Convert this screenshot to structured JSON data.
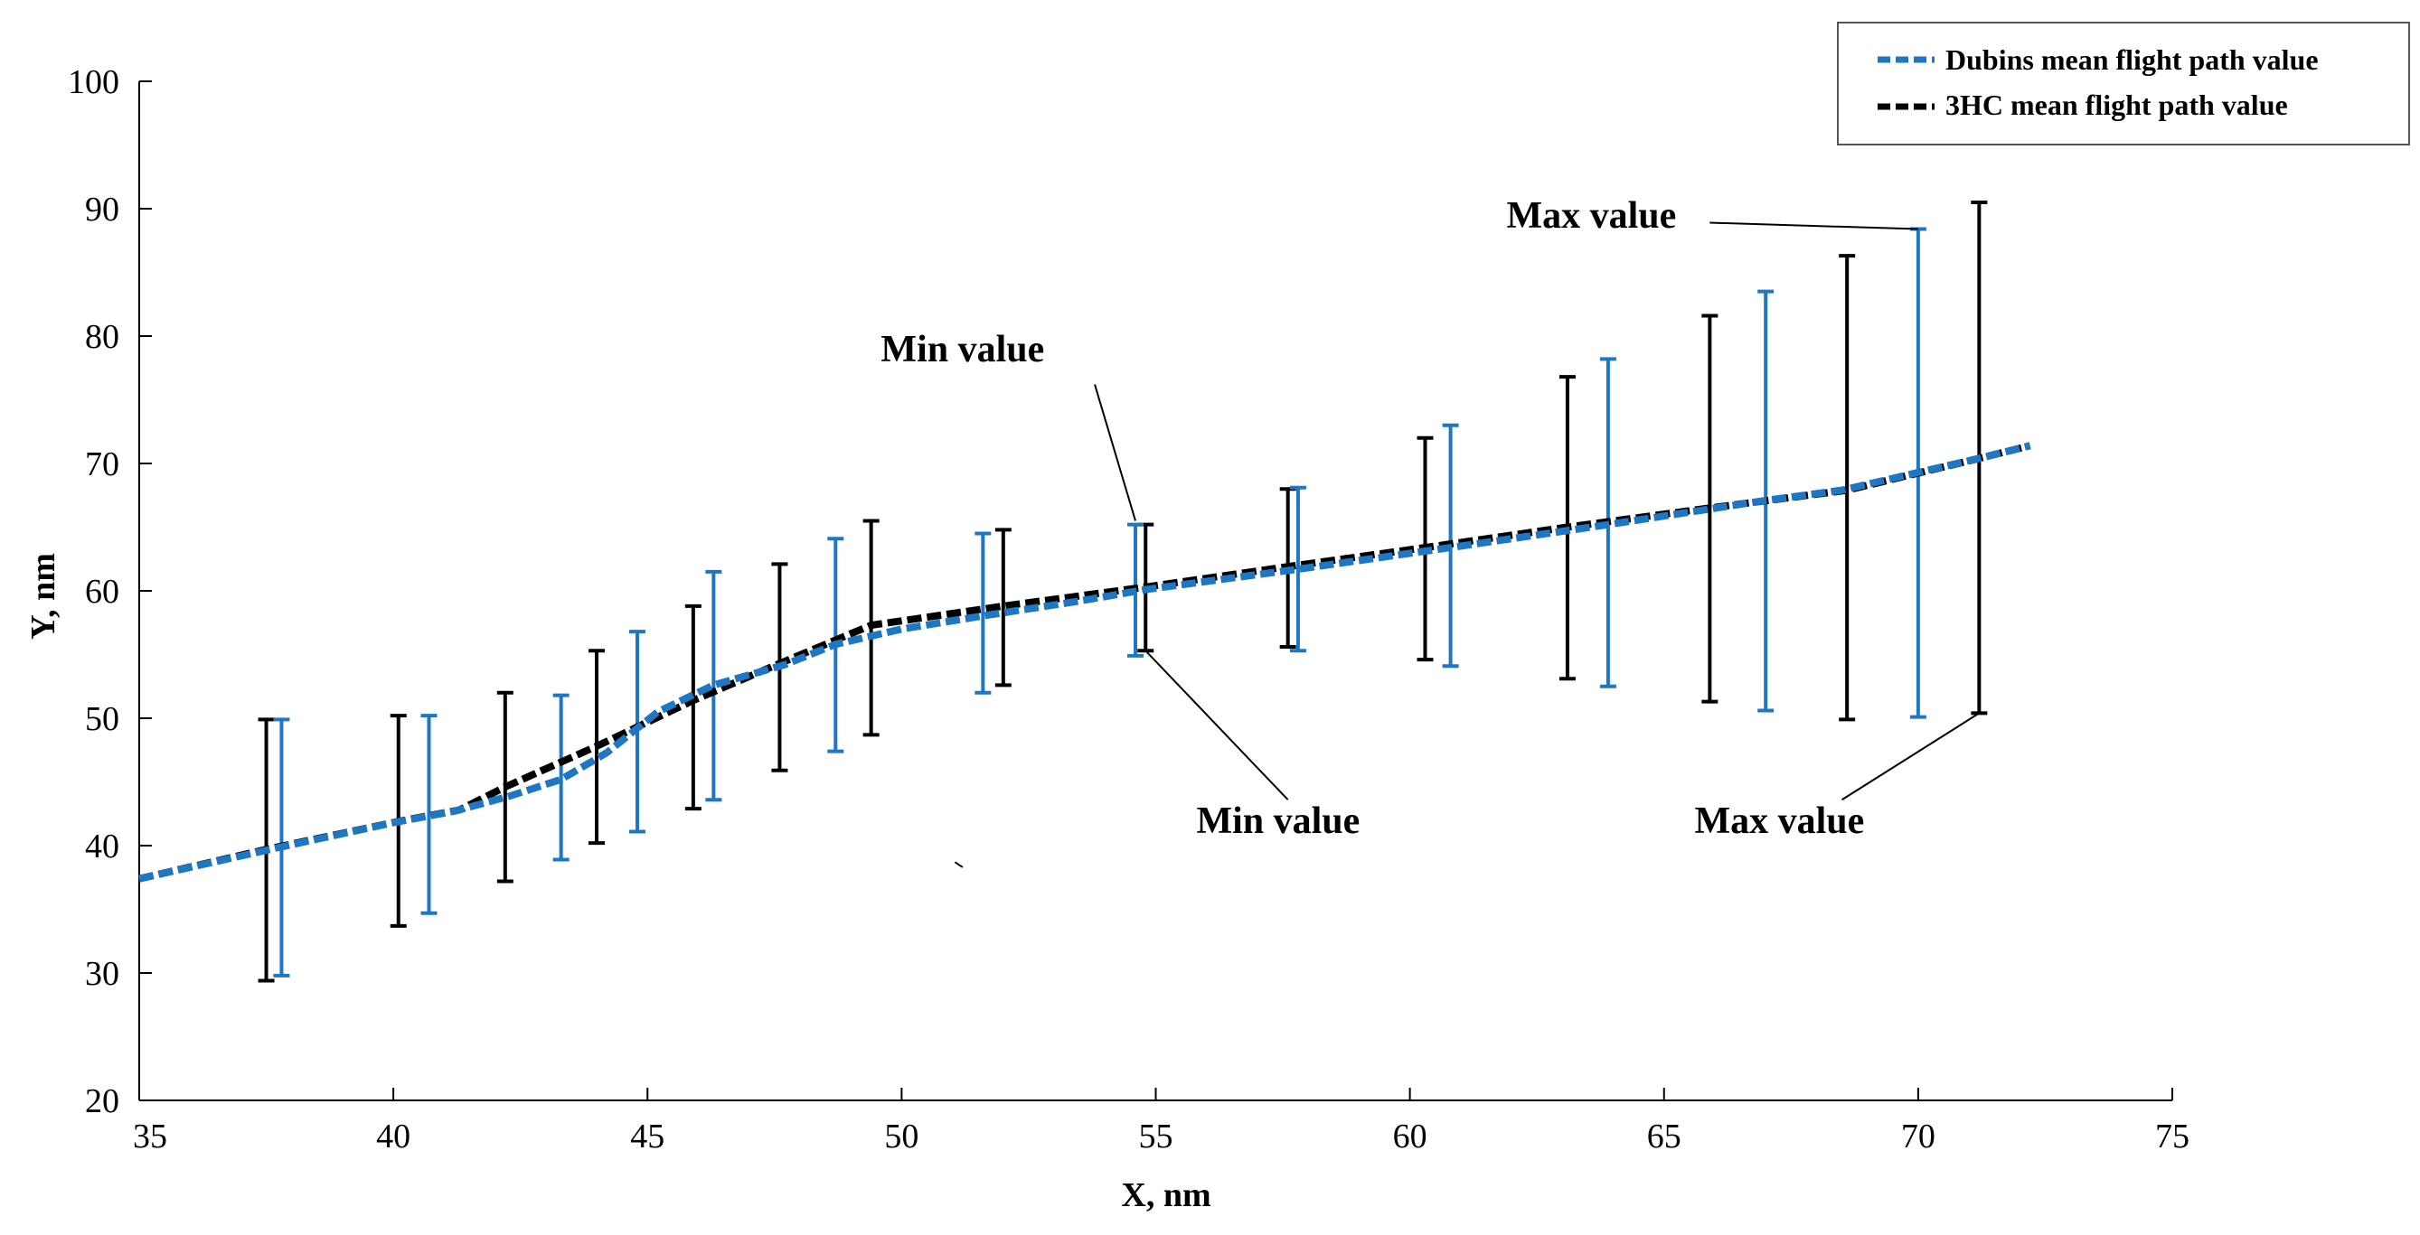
{
  "chart_data": {
    "type": "line",
    "title": "",
    "xlabel": "X, nm",
    "ylabel": "Y, nm",
    "xlim": [
      35,
      75
    ],
    "ylim": [
      20,
      100
    ],
    "xticks": [
      35,
      40,
      45,
      50,
      55,
      60,
      65,
      70,
      75
    ],
    "yticks": [
      20,
      30,
      40,
      50,
      60,
      70,
      80,
      90,
      100
    ],
    "legend_position": "top-right",
    "colors": {
      "dubins": "#1f77c4",
      "hc3": "#000000"
    },
    "series": [
      {
        "name": "Dubins mean flight path value",
        "style": "dashed",
        "color": "#1f77c4",
        "x": [
          35,
          37.8,
          40,
          41.2,
          42.3,
          43.3,
          44.2,
          45.2,
          46.3,
          47.7,
          48.7,
          50,
          51.7,
          53.5,
          54.8,
          57.8,
          60.8,
          63.9,
          67,
          68.5,
          70,
          71.2,
          72.2
        ],
        "y": [
          37.4,
          39.9,
          41.8,
          42.7,
          43.9,
          45.2,
          47.3,
          50.5,
          52.6,
          54.2,
          55.8,
          57.0,
          58.1,
          59.2,
          60.1,
          61.7,
          63.4,
          65.2,
          67.1,
          67.9,
          69.3,
          70.4,
          71.4
        ]
      },
      {
        "name": "3HC mean flight path value",
        "style": "dashed",
        "color": "#000000",
        "x": [
          35,
          37.5,
          40.1,
          41.3,
          42.2,
          44,
          45.9,
          47.6,
          49.4,
          52,
          54.8,
          57.6,
          60.3,
          63.1,
          65.9,
          68.6,
          71.2,
          72.2
        ],
        "y": [
          37.4,
          39.7,
          41.9,
          42.8,
          44.6,
          47.8,
          51.4,
          54.3,
          57.3,
          58.8,
          60.3,
          61.9,
          63.4,
          65.0,
          66.5,
          67.9,
          70.4,
          71.4
        ]
      }
    ],
    "error_bars": [
      {
        "series": "3HC mean flight path value",
        "points": [
          {
            "x": 37.5,
            "min": 29.4,
            "max": 49.9
          },
          {
            "x": 40.1,
            "min": 33.7,
            "max": 50.2
          },
          {
            "x": 42.2,
            "min": 37.2,
            "max": 52.0
          },
          {
            "x": 44.0,
            "min": 40.2,
            "max": 55.3
          },
          {
            "x": 45.9,
            "min": 42.9,
            "max": 58.8
          },
          {
            "x": 47.6,
            "min": 45.9,
            "max": 62.1
          },
          {
            "x": 49.4,
            "min": 48.7,
            "max": 65.5
          },
          {
            "x": 52.0,
            "min": 52.6,
            "max": 64.8
          },
          {
            "x": 54.8,
            "min": 55.3,
            "max": 65.2
          },
          {
            "x": 57.6,
            "min": 55.6,
            "max": 68.0
          },
          {
            "x": 60.3,
            "min": 54.6,
            "max": 72.0
          },
          {
            "x": 63.1,
            "min": 53.1,
            "max": 76.8
          },
          {
            "x": 65.9,
            "min": 51.3,
            "max": 81.6
          },
          {
            "x": 68.6,
            "min": 49.9,
            "max": 86.3
          },
          {
            "x": 71.2,
            "min": 50.4,
            "max": 90.5
          }
        ]
      },
      {
        "series": "Dubins mean flight path value",
        "points": [
          {
            "x": 37.8,
            "min": 29.8,
            "max": 49.9
          },
          {
            "x": 40.7,
            "min": 34.7,
            "max": 50.2
          },
          {
            "x": 43.3,
            "min": 38.9,
            "max": 51.8
          },
          {
            "x": 44.8,
            "min": 41.1,
            "max": 56.8
          },
          {
            "x": 46.3,
            "min": 43.6,
            "max": 61.5
          },
          {
            "x": 48.7,
            "min": 47.4,
            "max": 64.1
          },
          {
            "x": 51.6,
            "min": 52.0,
            "max": 64.5
          },
          {
            "x": 54.6,
            "min": 54.9,
            "max": 65.2
          },
          {
            "x": 57.8,
            "min": 55.3,
            "max": 68.1
          },
          {
            "x": 60.8,
            "min": 54.1,
            "max": 73.0
          },
          {
            "x": 63.9,
            "min": 52.5,
            "max": 78.2
          },
          {
            "x": 67.0,
            "min": 50.6,
            "max": 83.5
          },
          {
            "x": 70.0,
            "min": 50.1,
            "max": 88.4
          }
        ]
      }
    ],
    "annotations": [
      {
        "id": "ann-min-top",
        "text": "Min value",
        "label_x": 51.2,
        "label_y": 78.0,
        "anchor": "middle",
        "target_x": 54.6,
        "target_y": 65.5,
        "from_x": 53.8,
        "from_y": 76.2
      },
      {
        "id": "ann-min-bottom",
        "text": "Min value",
        "label_x": 55.8,
        "label_y": 41.0,
        "anchor": "start",
        "target_x": 54.8,
        "target_y": 55.3,
        "from_x": 57.6,
        "from_y": 43.6
      },
      {
        "id": "ann-max-top",
        "text": "Max value",
        "label_x": 61.9,
        "label_y": 88.5,
        "anchor": "start",
        "target_x": 70.0,
        "target_y": 88.4,
        "from_x": 65.9,
        "from_y": 88.9
      },
      {
        "id": "ann-max-bottom",
        "text": "Max value",
        "label_x": 65.6,
        "label_y": 41.0,
        "anchor": "start",
        "target_x": 71.2,
        "target_y": 50.4,
        "from_x": 68.5,
        "from_y": 43.6
      }
    ],
    "stray_marks": [
      {
        "x1": 51.05,
        "y1": 38.7,
        "x2": 51.2,
        "y2": 38.3
      }
    ]
  }
}
